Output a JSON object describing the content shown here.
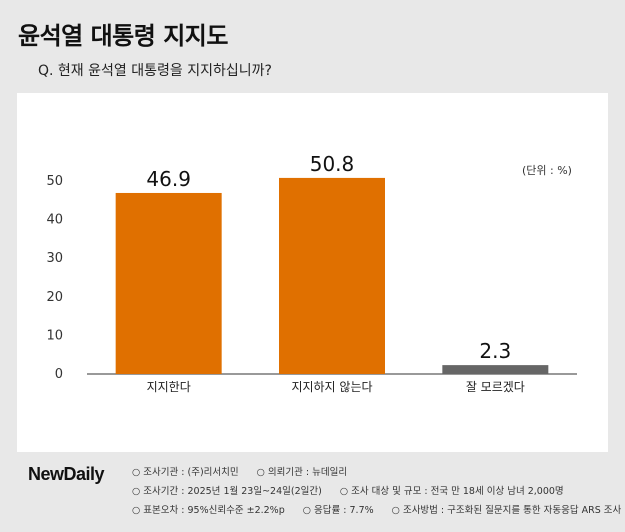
{
  "title": "윤석열 대통령 지지도",
  "question": "Q. 현재 윤석열 대통령을 지지하십니까?",
  "unit_label": "(단위 : %)",
  "logo": {
    "part1": "New",
    "part2": "Daily"
  },
  "info": {
    "row1": [
      "○ 조사기관 : (주)리서치민",
      "○ 의뢰기관 : 뉴데일리"
    ],
    "row2": [
      "○ 조사기간 : 2025년 1월 23일~24일(2일간)",
      "○ 조사 대상 및 규모 : 전국 만 18세 이상 남녀 2,000명"
    ],
    "row3": [
      "○ 표본오차 : 95%신뢰수준 ±2.2%p",
      "○ 응답률 : 7.7%",
      "○ 조사방법 : 구조화된 질문지를 통한 자동응답 ARS 조사"
    ]
  },
  "chart_data": {
    "type": "bar",
    "categories": [
      "지지한다",
      "지지하지 않는다",
      "잘 모르겠다"
    ],
    "values": [
      46.9,
      50.8,
      2.3
    ],
    "value_labels": [
      "46.9",
      "50.8",
      "2.3"
    ],
    "colors": [
      "#e07000",
      "#e07000",
      "#666666"
    ],
    "ylim": [
      0,
      50
    ],
    "yticks": [
      0,
      10,
      20,
      30,
      40,
      50
    ],
    "grid": false
  }
}
